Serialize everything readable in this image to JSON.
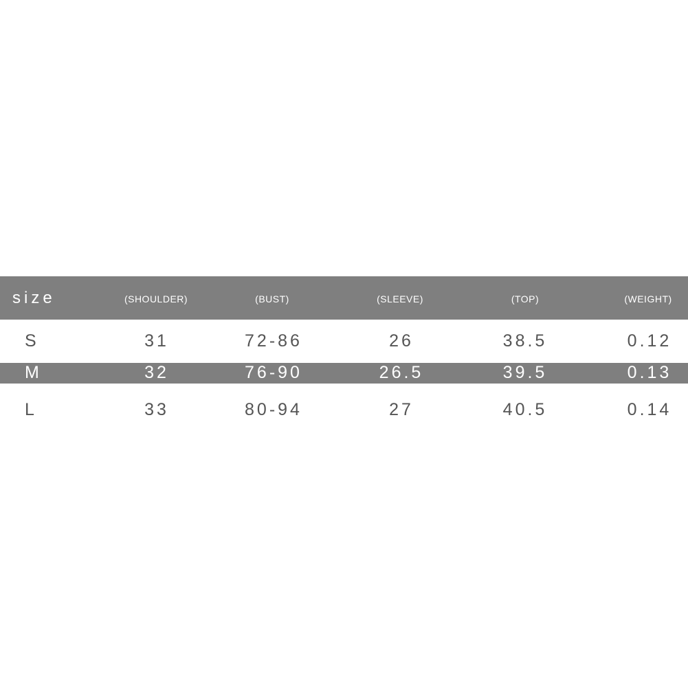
{
  "table": {
    "headers": [
      "size",
      "(SHOULDER)",
      "(BUST)",
      "(SLEEVE)",
      "(TOP)",
      "(WEIGHT)"
    ],
    "rows": [
      [
        "S",
        "31",
        "72-86",
        "26",
        "38.5",
        "0.12"
      ],
      [
        "M",
        "32",
        "76-90",
        "26.5",
        "39.5",
        "0.13"
      ],
      [
        "L",
        "33",
        "80-94",
        "27",
        "40.5",
        "0.14"
      ]
    ],
    "band_color": "#7f7f7f"
  }
}
